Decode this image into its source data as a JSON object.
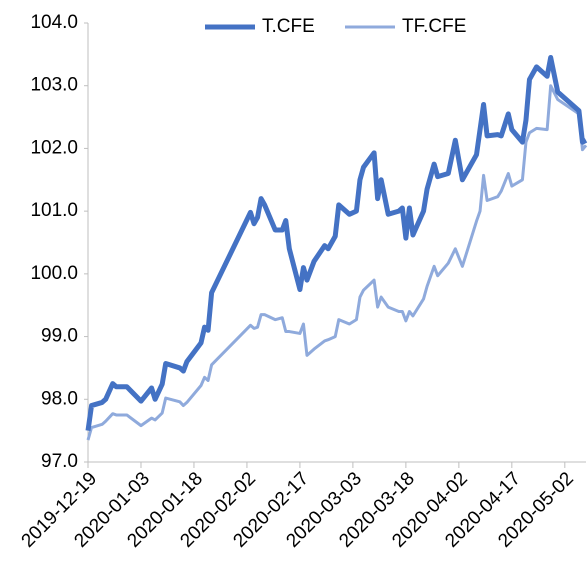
{
  "chart_data": {
    "type": "line",
    "x": [
      "2019-12-19",
      "2019-12-20",
      "2019-12-23",
      "2019-12-24",
      "2019-12-26",
      "2019-12-27",
      "2019-12-30",
      "2020-01-03",
      "2020-01-06",
      "2020-01-07",
      "2020-01-09",
      "2020-01-10",
      "2020-01-14",
      "2020-01-15",
      "2020-01-16",
      "2020-01-20",
      "2020-01-21",
      "2020-01-22",
      "2020-01-23",
      "2020-02-03",
      "2020-02-04",
      "2020-02-05",
      "2020-02-06",
      "2020-02-07",
      "2020-02-10",
      "2020-02-12",
      "2020-02-13",
      "2020-02-14",
      "2020-02-17",
      "2020-02-18",
      "2020-02-19",
      "2020-02-21",
      "2020-02-24",
      "2020-02-25",
      "2020-02-27",
      "2020-02-28",
      "2020-03-02",
      "2020-03-04",
      "2020-03-05",
      "2020-03-06",
      "2020-03-09",
      "2020-03-10",
      "2020-03-11",
      "2020-03-13",
      "2020-03-16",
      "2020-03-17",
      "2020-03-18",
      "2020-03-19",
      "2020-03-20",
      "2020-03-23",
      "2020-03-24",
      "2020-03-26",
      "2020-03-27",
      "2020-03-30",
      "2020-04-01",
      "2020-04-03",
      "2020-04-07",
      "2020-04-08",
      "2020-04-09",
      "2020-04-10",
      "2020-04-13",
      "2020-04-14",
      "2020-04-16",
      "2020-04-17",
      "2020-04-20",
      "2020-04-21",
      "2020-04-22",
      "2020-04-24",
      "2020-04-27",
      "2020-04-28",
      "2020-04-30",
      "2020-05-06",
      "2020-05-07",
      "2020-05-08"
    ],
    "series": [
      {
        "name": "T.CFE",
        "color": "#4472c4",
        "values": [
          97.5,
          97.9,
          97.95,
          98.0,
          98.25,
          98.2,
          98.2,
          97.97,
          98.18,
          98.0,
          98.24,
          98.57,
          98.5,
          98.45,
          98.6,
          98.9,
          99.15,
          99.1,
          99.7,
          100.98,
          100.8,
          100.9,
          101.2,
          101.1,
          100.7,
          100.7,
          100.85,
          100.4,
          99.75,
          100.1,
          99.9,
          100.2,
          100.45,
          100.4,
          100.6,
          101.1,
          100.95,
          101.0,
          101.5,
          101.7,
          101.93,
          101.2,
          101.5,
          100.95,
          101.0,
          101.05,
          100.57,
          101.05,
          100.62,
          101.0,
          101.35,
          101.75,
          101.55,
          101.6,
          102.13,
          101.5,
          101.9,
          102.3,
          102.7,
          102.2,
          102.22,
          102.2,
          102.55,
          102.3,
          102.1,
          102.45,
          103.1,
          103.3,
          103.15,
          103.45,
          102.9,
          102.6,
          102.1,
          102.13
        ]
      },
      {
        "name": "TF.CFE",
        "color": "#8faadc",
        "values": [
          97.35,
          97.55,
          97.6,
          97.65,
          97.77,
          97.75,
          97.75,
          97.58,
          97.7,
          97.67,
          97.78,
          98.02,
          97.96,
          97.9,
          97.95,
          98.22,
          98.35,
          98.3,
          98.55,
          99.18,
          99.13,
          99.15,
          99.35,
          99.35,
          99.27,
          99.3,
          99.08,
          99.08,
          99.05,
          99.2,
          98.7,
          98.8,
          98.93,
          98.95,
          99.0,
          99.27,
          99.2,
          99.27,
          99.63,
          99.74,
          99.9,
          99.47,
          99.63,
          99.47,
          99.4,
          99.4,
          99.25,
          99.4,
          99.33,
          99.6,
          99.8,
          100.12,
          99.97,
          100.17,
          100.4,
          100.12,
          100.84,
          101.0,
          101.57,
          101.17,
          101.23,
          101.32,
          101.6,
          101.4,
          101.5,
          102.1,
          102.25,
          102.32,
          102.3,
          103.0,
          102.78,
          102.55,
          101.98,
          102.05
        ]
      }
    ],
    "xlim": [
      "2019-12-19",
      "2020-05-08"
    ],
    "xticks": [
      "2019-12-19",
      "2020-01-03",
      "2020-01-18",
      "2020-02-02",
      "2020-02-17",
      "2020-03-03",
      "2020-03-18",
      "2020-04-02",
      "2020-04-17",
      "2020-05-02"
    ],
    "ylim": [
      97,
      104
    ],
    "yticks": [
      {
        "value": 97,
        "label": "97.0"
      },
      {
        "value": 98,
        "label": "98.0"
      },
      {
        "value": 99,
        "label": "99.0"
      },
      {
        "value": 100,
        "label": "100.0"
      },
      {
        "value": 101,
        "label": "101.0"
      },
      {
        "value": 102,
        "label": "102.0"
      },
      {
        "value": 103,
        "label": "103.0"
      },
      {
        "value": 104,
        "label": "104.0"
      }
    ],
    "legend": "top"
  }
}
